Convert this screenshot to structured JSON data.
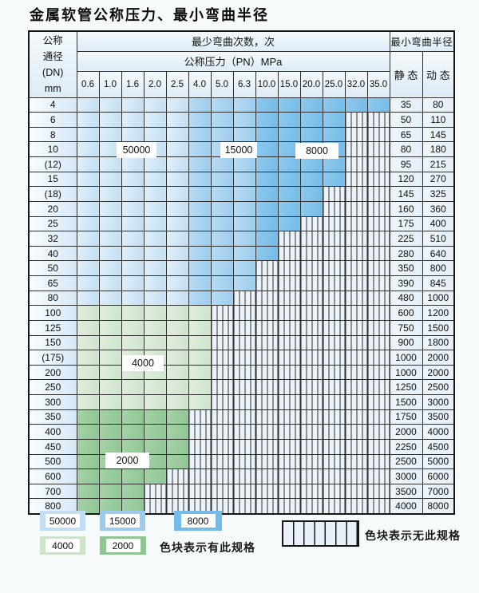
{
  "title": "金属软管公称压力、最小弯曲半径",
  "table": {
    "header": {
      "dn_lines": [
        "公称",
        "通径",
        "(DN)",
        "mm"
      ],
      "bend_cycles_label": "最少弯曲次数，次",
      "pressure_label": "公称压力（PN）MPa",
      "pressure_values": [
        "0.6",
        "1.0",
        "1.6",
        "2.0",
        "2.5",
        "4.0",
        "5.0",
        "6.3",
        "10.0",
        "15.0",
        "20.0",
        "25.0",
        "32.0",
        "35.0"
      ],
      "radius_label": "最小弯曲半径",
      "static_label": "静 态",
      "dynamic_label": "动 态"
    },
    "cell_states_legend": "A=50000次, B=15000次, C=8000次, D=4000次, E=2000次, S=无此规格",
    "rows": [
      {
        "dn": "4",
        "cells": [
          "A",
          "A",
          "A",
          "A",
          "A",
          "B",
          "B",
          "B",
          "C",
          "C",
          "C",
          "C",
          "C",
          "C"
        ],
        "static": "35",
        "dynamic": "80"
      },
      {
        "dn": "6",
        "cells": [
          "A",
          "A",
          "A",
          "A",
          "A",
          "B",
          "B",
          "B",
          "C",
          "C",
          "C",
          "C",
          "S",
          "S"
        ],
        "static": "50",
        "dynamic": "110"
      },
      {
        "dn": "8",
        "cells": [
          "A",
          "A",
          "A",
          "A",
          "A",
          "B",
          "B",
          "B",
          "C",
          "C",
          "C",
          "C",
          "S",
          "S"
        ],
        "static": "65",
        "dynamic": "145"
      },
      {
        "dn": "10",
        "cells": [
          "A",
          "A",
          "A",
          "A",
          "A",
          "B",
          "B",
          "B",
          "C",
          "C",
          "C",
          "C",
          "S",
          "S"
        ],
        "static": "80",
        "dynamic": "180"
      },
      {
        "dn": "(12)",
        "cells": [
          "A",
          "A",
          "A",
          "A",
          "A",
          "B",
          "B",
          "B",
          "C",
          "C",
          "C",
          "C",
          "S",
          "S"
        ],
        "static": "95",
        "dynamic": "215"
      },
      {
        "dn": "15",
        "cells": [
          "A",
          "A",
          "A",
          "A",
          "A",
          "B",
          "B",
          "B",
          "C",
          "C",
          "C",
          "C",
          "S",
          "S"
        ],
        "static": "120",
        "dynamic": "270"
      },
      {
        "dn": "(18)",
        "cells": [
          "A",
          "A",
          "A",
          "A",
          "A",
          "B",
          "B",
          "B",
          "C",
          "C",
          "C",
          "S",
          "S",
          "S"
        ],
        "static": "145",
        "dynamic": "325"
      },
      {
        "dn": "20",
        "cells": [
          "A",
          "A",
          "A",
          "A",
          "A",
          "B",
          "B",
          "B",
          "C",
          "C",
          "C",
          "S",
          "S",
          "S"
        ],
        "static": "160",
        "dynamic": "360"
      },
      {
        "dn": "25",
        "cells": [
          "A",
          "A",
          "A",
          "A",
          "A",
          "B",
          "B",
          "B",
          "C",
          "C",
          "S",
          "S",
          "S",
          "S"
        ],
        "static": "175",
        "dynamic": "400"
      },
      {
        "dn": "32",
        "cells": [
          "A",
          "A",
          "A",
          "A",
          "A",
          "B",
          "B",
          "B",
          "C",
          "S",
          "S",
          "S",
          "S",
          "S"
        ],
        "static": "225",
        "dynamic": "510"
      },
      {
        "dn": "40",
        "cells": [
          "A",
          "A",
          "A",
          "A",
          "A",
          "B",
          "B",
          "B",
          "C",
          "S",
          "S",
          "S",
          "S",
          "S"
        ],
        "static": "280",
        "dynamic": "640"
      },
      {
        "dn": "50",
        "cells": [
          "A",
          "A",
          "A",
          "A",
          "A",
          "B",
          "B",
          "B",
          "S",
          "S",
          "S",
          "S",
          "S",
          "S"
        ],
        "static": "350",
        "dynamic": "800"
      },
      {
        "dn": "65",
        "cells": [
          "A",
          "A",
          "A",
          "A",
          "A",
          "B",
          "B",
          "B",
          "S",
          "S",
          "S",
          "S",
          "S",
          "S"
        ],
        "static": "390",
        "dynamic": "845"
      },
      {
        "dn": "80",
        "cells": [
          "A",
          "A",
          "A",
          "A",
          "A",
          "B",
          "B",
          "S",
          "S",
          "S",
          "S",
          "S",
          "S",
          "S"
        ],
        "static": "480",
        "dynamic": "1000"
      },
      {
        "dn": "100",
        "cells": [
          "D",
          "D",
          "D",
          "D",
          "D",
          "D",
          "S",
          "S",
          "S",
          "S",
          "S",
          "S",
          "S",
          "S"
        ],
        "static": "600",
        "dynamic": "1200"
      },
      {
        "dn": "125",
        "cells": [
          "D",
          "D",
          "D",
          "D",
          "D",
          "D",
          "S",
          "S",
          "S",
          "S",
          "S",
          "S",
          "S",
          "S"
        ],
        "static": "750",
        "dynamic": "1500"
      },
      {
        "dn": "150",
        "cells": [
          "D",
          "D",
          "D",
          "D",
          "D",
          "D",
          "S",
          "S",
          "S",
          "S",
          "S",
          "S",
          "S",
          "S"
        ],
        "static": "900",
        "dynamic": "1800"
      },
      {
        "dn": "(175)",
        "cells": [
          "D",
          "D",
          "D",
          "D",
          "D",
          "D",
          "S",
          "S",
          "S",
          "S",
          "S",
          "S",
          "S",
          "S"
        ],
        "static": "1000",
        "dynamic": "2000"
      },
      {
        "dn": "200",
        "cells": [
          "D",
          "D",
          "D",
          "D",
          "D",
          "D",
          "S",
          "S",
          "S",
          "S",
          "S",
          "S",
          "S",
          "S"
        ],
        "static": "1000",
        "dynamic": "2000"
      },
      {
        "dn": "250",
        "cells": [
          "D",
          "D",
          "D",
          "D",
          "D",
          "D",
          "S",
          "S",
          "S",
          "S",
          "S",
          "S",
          "S",
          "S"
        ],
        "static": "1250",
        "dynamic": "2500"
      },
      {
        "dn": "300",
        "cells": [
          "D",
          "D",
          "D",
          "D",
          "D",
          "D",
          "S",
          "S",
          "S",
          "S",
          "S",
          "S",
          "S",
          "S"
        ],
        "static": "1500",
        "dynamic": "3000"
      },
      {
        "dn": "350",
        "cells": [
          "E",
          "E",
          "E",
          "E",
          "E",
          "S",
          "S",
          "S",
          "S",
          "S",
          "S",
          "S",
          "S",
          "S"
        ],
        "static": "1750",
        "dynamic": "3500"
      },
      {
        "dn": "400",
        "cells": [
          "E",
          "E",
          "E",
          "E",
          "E",
          "S",
          "S",
          "S",
          "S",
          "S",
          "S",
          "S",
          "S",
          "S"
        ],
        "static": "2000",
        "dynamic": "4000"
      },
      {
        "dn": "450",
        "cells": [
          "E",
          "E",
          "E",
          "E",
          "E",
          "S",
          "S",
          "S",
          "S",
          "S",
          "S",
          "S",
          "S",
          "S"
        ],
        "static": "2250",
        "dynamic": "4500"
      },
      {
        "dn": "500",
        "cells": [
          "E",
          "E",
          "E",
          "E",
          "E",
          "S",
          "S",
          "S",
          "S",
          "S",
          "S",
          "S",
          "S",
          "S"
        ],
        "static": "2500",
        "dynamic": "5000"
      },
      {
        "dn": "600",
        "cells": [
          "E",
          "E",
          "E",
          "E",
          "S",
          "S",
          "S",
          "S",
          "S",
          "S",
          "S",
          "S",
          "S",
          "S"
        ],
        "static": "3000",
        "dynamic": "6000"
      },
      {
        "dn": "700",
        "cells": [
          "E",
          "E",
          "E",
          "S",
          "S",
          "S",
          "S",
          "S",
          "S",
          "S",
          "S",
          "S",
          "S",
          "S"
        ],
        "static": "3500",
        "dynamic": "7000"
      },
      {
        "dn": "800",
        "cells": [
          "E",
          "E",
          "E",
          "S",
          "S",
          "S",
          "S",
          "S",
          "S",
          "S",
          "S",
          "S",
          "S",
          "S"
        ],
        "static": "4000",
        "dynamic": "8000"
      }
    ],
    "overlay_labels": {
      "b50000": "50000",
      "b15000": "15000",
      "b8000": "8000",
      "g4000": "4000",
      "g2000": "2000"
    }
  },
  "legend": {
    "items": [
      {
        "label": "50000",
        "color": "#c3def2"
      },
      {
        "label": "15000",
        "color": "#9ccbed"
      },
      {
        "label": "8000",
        "color": "#74bce7"
      },
      {
        "label": "4000",
        "color": "#cde4cb"
      },
      {
        "label": "2000",
        "color": "#8fc694"
      }
    ],
    "has_spec_text": "色块表示有此规格",
    "no_spec_text": "色块表示无此规格"
  },
  "colors": {
    "cycles_50000": "#c3def2",
    "cycles_15000": "#9ccbed",
    "cycles_8000": "#74bce7",
    "cycles_4000": "#cde4cb",
    "cycles_2000": "#8fc694",
    "no_spec_bg": "#ecf2f9",
    "grid_line": "#2e2e2e"
  }
}
